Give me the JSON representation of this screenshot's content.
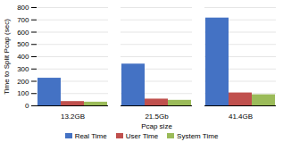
{
  "chart_data": {
    "type": "bar",
    "categories": [
      "13.2GB",
      "21.5Gb",
      "41.4GB"
    ],
    "series": [
      {
        "name": "Real Time",
        "color": "#4472C4",
        "values": [
          225,
          340,
          715
        ]
      },
      {
        "name": "User Time",
        "color": "#C0504D",
        "values": [
          35,
          55,
          105
        ]
      },
      {
        "name": "System Time",
        "color": "#9BBB59",
        "values": [
          30,
          45,
          90
        ]
      }
    ],
    "xlabel": "Pcap size",
    "ylabel": "Time to Split Pcap (sec)",
    "ylim": [
      0,
      800
    ],
    "yticks": [
      0,
      100,
      200,
      300,
      400,
      500,
      600,
      700,
      800
    ],
    "grid": true,
    "legend": "bottom"
  }
}
